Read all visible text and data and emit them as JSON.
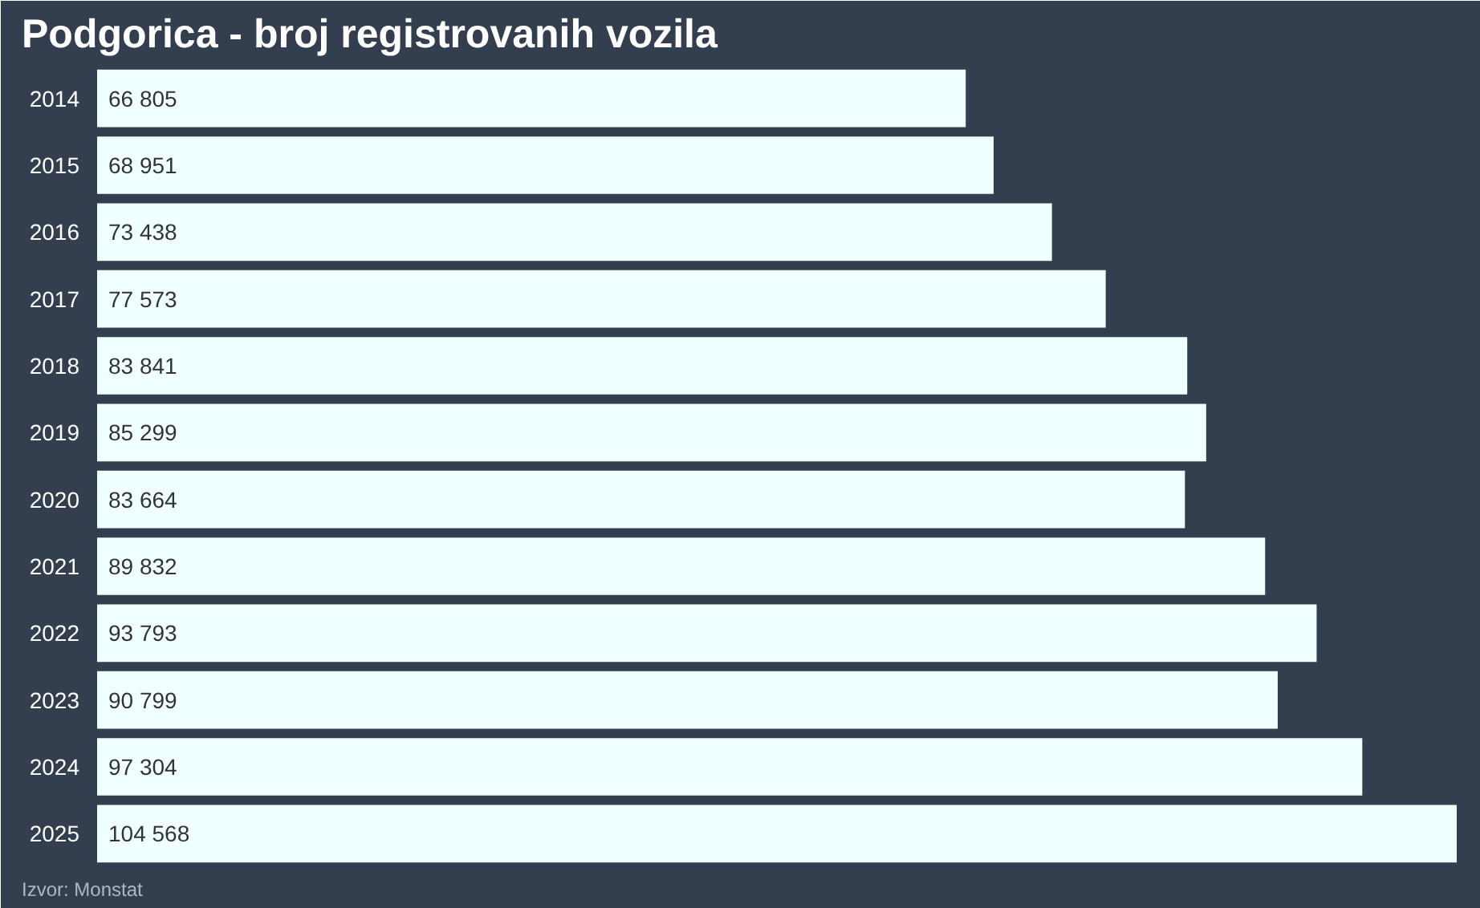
{
  "chart_data": {
    "type": "bar",
    "orientation": "horizontal",
    "title": "Podgorica - broj registrovanih vozila",
    "categories": [
      "2014",
      "2015",
      "2016",
      "2017",
      "2018",
      "2019",
      "2020",
      "2021",
      "2022",
      "2023",
      "2024",
      "2025"
    ],
    "values": [
      66805,
      68951,
      73438,
      77573,
      83841,
      85299,
      83664,
      89832,
      93793,
      90799,
      97304,
      104568
    ],
    "value_labels": [
      "66 805",
      "68 951",
      "73 438",
      "77 573",
      "83 841",
      "85 299",
      "83 664",
      "89 832",
      "93 793",
      "90 799",
      "97 304",
      "104 568"
    ],
    "color": "#f0ffff",
    "tick_labels": "y",
    "annotations": [
      "Izvor: Monstat"
    ]
  }
}
